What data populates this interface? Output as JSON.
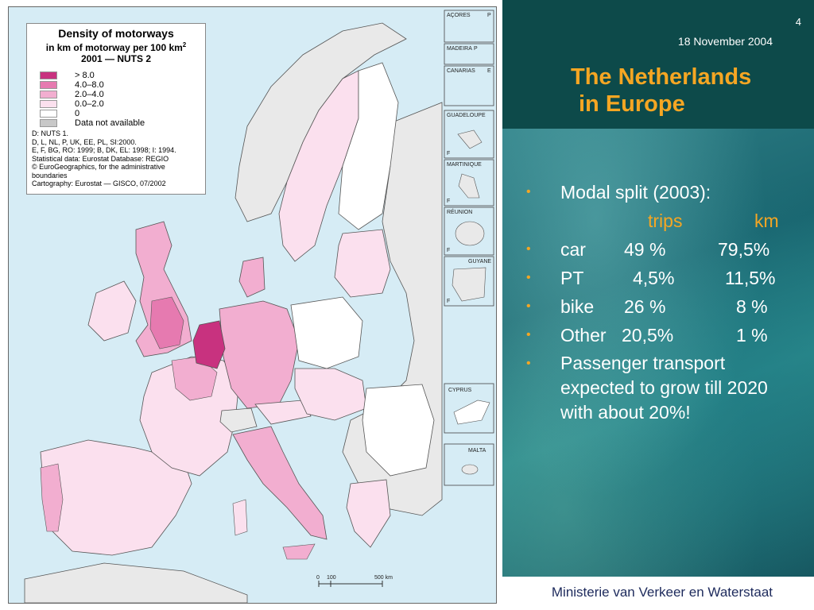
{
  "map": {
    "legend": {
      "title": "Density of motorways",
      "subtitle_text": "in km of motorway per 100 km",
      "subtitle_sup": "2",
      "year": "2001 — NUTS 2",
      "classes": [
        {
          "label": "> 8.0",
          "color": "#c8327f"
        },
        {
          "label": "4.0–8.0",
          "color": "#e67ab0"
        },
        {
          "label": "2.0–4.0",
          "color": "#f2aed0"
        },
        {
          "label": "0.0–2.0",
          "color": "#fbe0ee"
        },
        {
          "label": "0",
          "color": "#ffffff"
        },
        {
          "label": "Data not available",
          "color": "#c8c8c8"
        }
      ],
      "notes": [
        "D: NUTS 1.",
        "D, L, NL, P, UK, EE, PL, SI:2000.",
        "E, F, BG, RO: 1999; B, DK, EL: 1998; I: 1994.",
        "Statistical data: Eurostat Database: REGIO",
        "© EuroGeographics, for the administrative boundaries",
        "Cartography: Eurostat — GISCO, 07/2002"
      ]
    },
    "insets": {
      "acores": "AÇORES",
      "acores_code": "P",
      "madeira": "MADEIRA",
      "madeira_code": "P",
      "canarias": "CANARIAS",
      "canarias_code": "E",
      "guadeloupe": "GUADELOUPE",
      "guadeloupe_code": "F",
      "martinique": "MARTINIQUE",
      "martinique_code": "F",
      "reunion": "RÉUNION",
      "reunion_code": "F",
      "guyane": "GUYANE",
      "guyane_code": "F",
      "cyprus": "CYPRUS",
      "malta": "MALTA"
    },
    "scale": {
      "t0": "0",
      "t1": "100",
      "t2": "500 km"
    },
    "colors": {
      "sea": "#d6ecf5",
      "non_eu": "#e9e9e9",
      "border": "#333333"
    }
  },
  "slide": {
    "page_number": "4",
    "date": "18 November 2004",
    "title_line1": "The Netherlands",
    "title_line2": "in Europe",
    "modal_split": {
      "heading": "Modal split (2003):",
      "col_trips": "trips",
      "col_km": "km",
      "rows": [
        {
          "mode": "car",
          "trips": "49   %",
          "km": "79,5%"
        },
        {
          "mode": "PT",
          "trips": "4,5%",
          "km": "11,5%"
        },
        {
          "mode": "bike",
          "trips": "26   %",
          "km": "8   %"
        },
        {
          "mode": "Other",
          "trips": "20,5%",
          "km": "1   %"
        }
      ]
    },
    "note": "Passenger transport expected to grow till 2020 with about 20%!",
    "footer": "Ministerie van Verkeer en Waterstaat",
    "colors": {
      "header_bg": "#0d4a4a",
      "accent": "#f5a623",
      "text": "#ffffff",
      "footer_text": "#1d2a5c"
    }
  }
}
